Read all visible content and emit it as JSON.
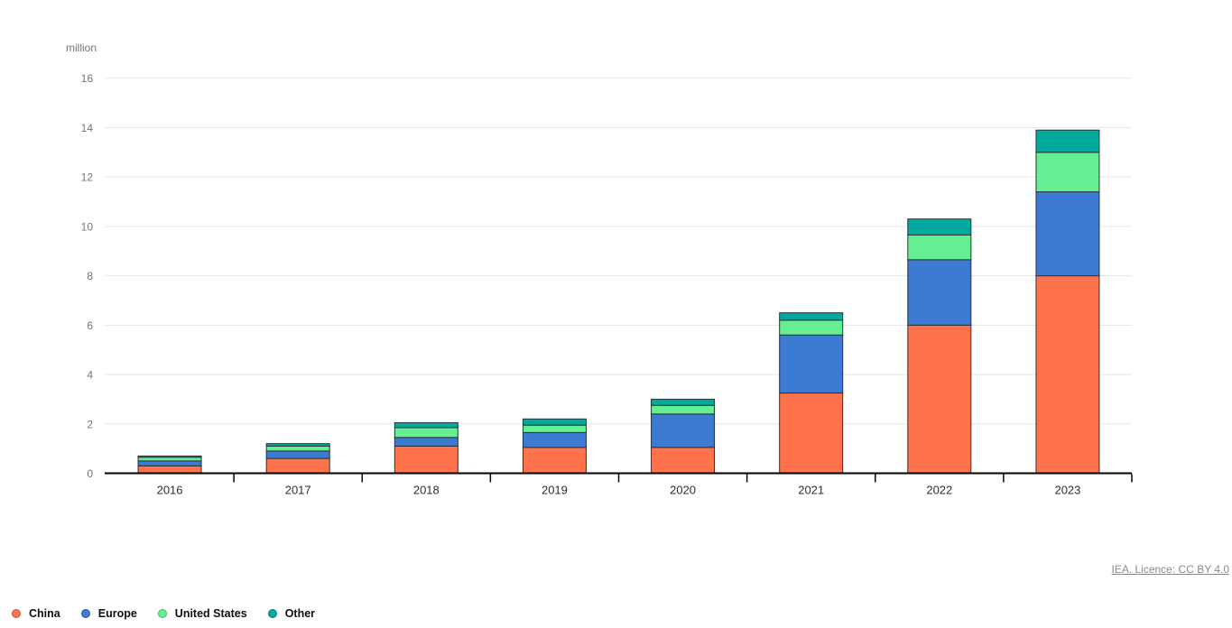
{
  "chart": {
    "unit_label": "million",
    "source_label": "IEA. Licence: CC BY 4.0"
  },
  "chart_data": {
    "type": "bar",
    "stacked": true,
    "title": "",
    "xlabel": "",
    "ylabel": "million",
    "ylim": [
      0,
      16
    ],
    "ytick_step": 2,
    "grid": true,
    "legend_position": "bottom-left",
    "categories": [
      "2016",
      "2017",
      "2018",
      "2019",
      "2020",
      "2021",
      "2022",
      "2023"
    ],
    "series": [
      {
        "name": "China",
        "color": "#fe734b",
        "values": [
          0.3,
          0.6,
          1.1,
          1.05,
          1.05,
          3.25,
          6.0,
          8.0
        ]
      },
      {
        "name": "Europe",
        "color": "#3d7ad2",
        "values": [
          0.2,
          0.3,
          0.35,
          0.6,
          1.35,
          2.35,
          2.65,
          3.4
        ]
      },
      {
        "name": "United States",
        "color": "#66ef92",
        "values": [
          0.15,
          0.2,
          0.4,
          0.3,
          0.35,
          0.6,
          1.0,
          1.6
        ]
      },
      {
        "name": "Other",
        "color": "#00ab9d",
        "values": [
          0.05,
          0.1,
          0.2,
          0.25,
          0.25,
          0.3,
          0.65,
          0.9
        ]
      }
    ],
    "totals": [
      0.7,
      1.2,
      2.05,
      2.2,
      3.0,
      6.5,
      10.3,
      13.9
    ],
    "colors": {
      "gridline": "#e5e5e5",
      "axis": "#000000",
      "bar_border": "#2b3138",
      "y_tick_label": "#757575",
      "x_tick_label": "#2e2e2e"
    }
  }
}
